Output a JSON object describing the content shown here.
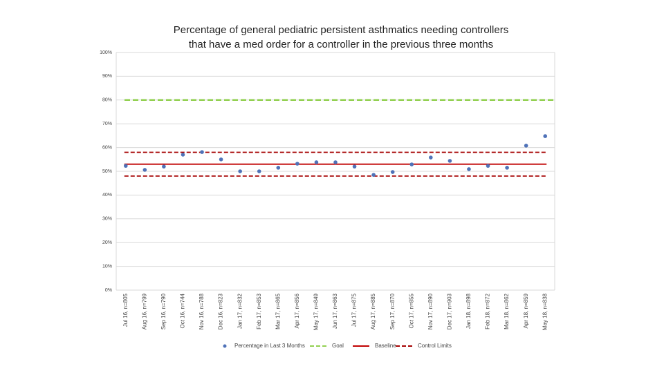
{
  "chart_data": {
    "type": "scatter",
    "title": [
      "Percentage of general pediatric persistent asthmatics needing controllers",
      "that have a med order for a controller in the previous three months"
    ],
    "categories": [
      "Jul 16, n=805",
      "Aug 16, n=799",
      "Sep 16, n=790",
      "Oct 16, n=744",
      "Nov 16, n=788",
      "Dec 16, n=823",
      "Jan 17, n=832",
      "Feb 17, n=853",
      "Mar 17, n=865",
      "Apr 17, n=856",
      "May 17, n=849",
      "Jun 17, n=863",
      "Jul 17, n=875",
      "Aug 17, n=885",
      "Sep 17, n=870",
      "Oct 17, n=855",
      "Nov 17, n=890",
      "Dec 17, n=903",
      "Jan 18, n=898",
      "Feb 18, n=872",
      "Mar 18, n=862",
      "Apr 18, n=859",
      "May 18, n=838"
    ],
    "series": [
      {
        "name": "Percentage in Last 3 Months",
        "color": "#4f72b8",
        "values": [
          52.3,
          50.6,
          52.0,
          57.0,
          58.1,
          55.0,
          50.0,
          50.0,
          51.5,
          53.2,
          53.8,
          53.8,
          52.0,
          48.5,
          49.7,
          52.9,
          55.8,
          54.4,
          50.9,
          52.3,
          51.5,
          60.8,
          64.8
        ]
      }
    ],
    "reference_lines": [
      {
        "name": "Goal",
        "color": "#92d050",
        "dashed": true,
        "values": [
          80
        ]
      },
      {
        "name": "Baseline",
        "color": "#c00000",
        "dashed": false,
        "values": [
          53
        ]
      },
      {
        "name": "Control Limits",
        "color": "#a50000",
        "dashed": true,
        "values": [
          58,
          48
        ]
      }
    ],
    "ylim": [
      0,
      100
    ],
    "yticks": [
      {
        "value": 0,
        "label": "0%"
      },
      {
        "value": 10,
        "label": "10%"
      },
      {
        "value": 20,
        "label": "20%"
      },
      {
        "value": 30,
        "label": "30%"
      },
      {
        "value": 40,
        "label": "40%"
      },
      {
        "value": 50,
        "label": "50%"
      },
      {
        "value": 60,
        "label": "60%"
      },
      {
        "value": 70,
        "label": "70%"
      },
      {
        "value": 80,
        "label": "80%"
      },
      {
        "value": 90,
        "label": "90%"
      },
      {
        "value": 100,
        "label": "100%"
      }
    ],
    "grid": true
  }
}
